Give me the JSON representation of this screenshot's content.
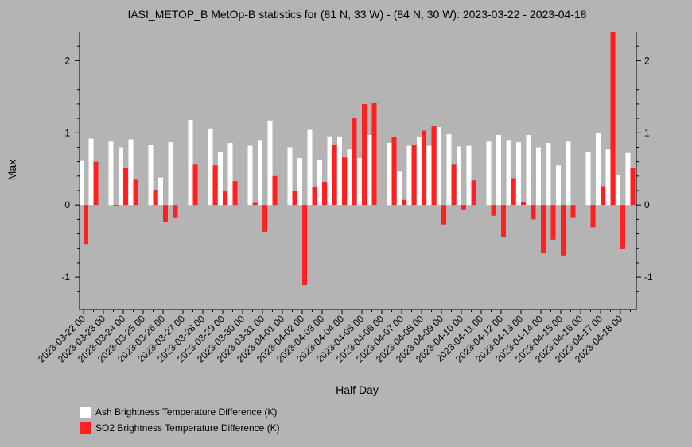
{
  "chart_data": {
    "type": "bar",
    "title": "IASI_METOP_B MetOp-B statistics for (81 N, 33 W) - (84 N, 30 W): 2023-03-22 - 2023-04-18",
    "xlabel": "Half Day",
    "ylabel": "Max",
    "ylim": [
      -1.45,
      2.4
    ],
    "yticks": [
      -1,
      0,
      1,
      2
    ],
    "xticks": [
      "2023-03-22 00",
      "2023-03-23 00",
      "2023-03-24 00",
      "2023-03-25 00",
      "2023-03-26 00",
      "2023-03-27 00",
      "2023-03-28 00",
      "2023-03-29 00",
      "2023-03-30 00",
      "2023-03-31 00",
      "2023-04-01 00",
      "2023-04-02 00",
      "2023-04-03 00",
      "2023-04-04 00",
      "2023-04-05 00",
      "2023-04-06 00",
      "2023-04-07 00",
      "2023-04-08 00",
      "2023-04-09 00",
      "2023-04-10 00",
      "2023-04-11 00",
      "2023-04-12 00",
      "2023-04-13 00",
      "2023-04-14 00",
      "2023-04-15 00",
      "2023-04-16 00",
      "2023-04-17 00",
      "2023-04-18 00"
    ],
    "series": [
      {
        "name": "Ash Brightness Temperature Difference (K)",
        "color": "#ffffff",
        "values": [
          0.61,
          0.92,
          null,
          0.88,
          0.8,
          0.91,
          null,
          0.83,
          0.38,
          0.87,
          null,
          1.18,
          null,
          1.06,
          0.74,
          0.86,
          null,
          0.82,
          0.9,
          1.17,
          null,
          0.8,
          0.65,
          1.04,
          0.63,
          0.95,
          0.95,
          0.77,
          0.65,
          0.97,
          null,
          0.86,
          0.46,
          0.82,
          0.94,
          0.82,
          1.08,
          0.98,
          0.81,
          0.82,
          null,
          0.88,
          0.97,
          0.9,
          0.87,
          0.97,
          0.8,
          0.86,
          0.55,
          0.88,
          null,
          0.73,
          1.0,
          0.77,
          0.42,
          0.72
        ]
      },
      {
        "name": "SO2 Brightness Temperature Difference (K)",
        "color": "#ff2020",
        "values": [
          -0.54,
          0.6,
          null,
          0.0,
          0.52,
          0.35,
          null,
          0.21,
          -0.23,
          -0.17,
          null,
          0.56,
          null,
          0.55,
          0.19,
          0.33,
          null,
          0.03,
          -0.37,
          0.4,
          null,
          0.19,
          -1.11,
          0.25,
          0.32,
          0.83,
          0.66,
          1.21,
          1.4,
          1.41,
          null,
          0.94,
          0.07,
          0.83,
          1.03,
          1.09,
          -0.27,
          0.56,
          -0.06,
          0.34,
          null,
          -0.15,
          -0.44,
          0.37,
          0.04,
          -0.2,
          -0.67,
          -0.48,
          -0.7,
          -0.17,
          null,
          -0.31,
          0.26,
          2.4,
          -0.61,
          0.51
        ]
      }
    ],
    "grid": false,
    "legend": "bottom-left"
  }
}
